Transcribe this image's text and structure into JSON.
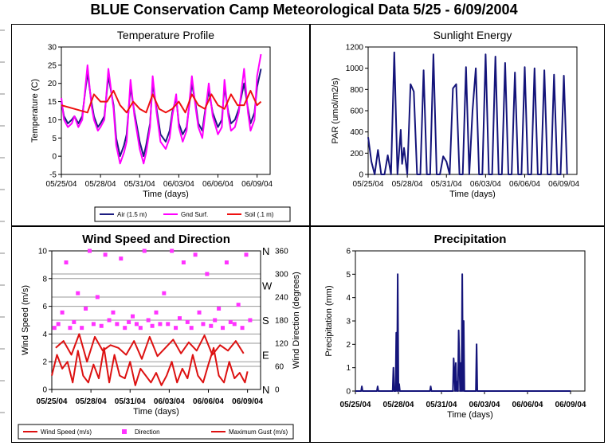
{
  "page": {
    "title": "BLUE Conservation Camp Meteorological Data    5/25 - 6/09/2004"
  },
  "colors": {
    "air": "#1c1c80",
    "ground": "#ff00ff",
    "soil": "#ee1111",
    "par": "#14147a",
    "precip": "#14147a",
    "wind": "#dd1111",
    "direction": "#ff33ff",
    "gust": "#dd1111"
  },
  "chart_data": [
    {
      "id": "temperature",
      "type": "line",
      "title": "Temperature Profile",
      "xlabel": "Time (days)",
      "ylabel": "Temperature (C)",
      "xticks": [
        "05/25/04",
        "05/28/04",
        "05/31/04",
        "06/03/04",
        "06/06/04",
        "06/09/04"
      ],
      "xlim": [
        0,
        16
      ],
      "ylim": [
        -5,
        30
      ],
      "yticks": [
        -5,
        0,
        5,
        10,
        15,
        20,
        25,
        30
      ],
      "legend_position": "bottom",
      "series": [
        {
          "name": "Air (1.5 m)",
          "color_key": "air",
          "x": [
            0,
            0.2,
            0.5,
            0.8,
            1,
            1.3,
            1.6,
            2,
            2.3,
            2.5,
            2.8,
            3,
            3.3,
            3.6,
            4,
            4.2,
            4.5,
            4.8,
            5,
            5.3,
            5.6,
            6,
            6.3,
            6.5,
            6.8,
            7,
            7.3,
            7.6,
            8,
            8.3,
            8.5,
            8.8,
            9,
            9.3,
            9.6,
            10,
            10.3,
            10.5,
            10.8,
            11,
            11.3,
            11.6,
            12,
            12.3,
            12.5,
            12.8,
            13,
            13.3,
            13.6,
            14,
            14.3,
            14.5,
            14.8,
            15,
            15.3
          ],
          "y": [
            15,
            11,
            9,
            10,
            11,
            9,
            11,
            23,
            15,
            11,
            8,
            9,
            11,
            22,
            14,
            5,
            0,
            3,
            6,
            19,
            12,
            4,
            0,
            3,
            9,
            20,
            13,
            6,
            4,
            7,
            12,
            16,
            9,
            6,
            8,
            20,
            14,
            9,
            7,
            12,
            18,
            12,
            8,
            10,
            19,
            12,
            9,
            10,
            13,
            20,
            13,
            9,
            12,
            19,
            24
          ]
        },
        {
          "name": "Gnd Surf.",
          "color_key": "ground",
          "x": [
            0,
            0.2,
            0.5,
            0.8,
            1,
            1.3,
            1.6,
            2,
            2.3,
            2.5,
            2.8,
            3,
            3.3,
            3.6,
            4,
            4.2,
            4.5,
            4.8,
            5,
            5.3,
            5.6,
            6,
            6.3,
            6.5,
            6.8,
            7,
            7.3,
            7.6,
            8,
            8.3,
            8.5,
            8.8,
            9,
            9.3,
            9.6,
            10,
            10.3,
            10.5,
            10.8,
            11,
            11.3,
            11.6,
            12,
            12.3,
            12.5,
            12.8,
            13,
            13.3,
            13.6,
            14,
            14.3,
            14.5,
            14.8,
            15,
            15.3
          ],
          "y": [
            16,
            10,
            8,
            9,
            11,
            8,
            10,
            25,
            14,
            10,
            7,
            8,
            10,
            24,
            13,
            3,
            -2,
            1,
            4,
            21,
            11,
            2,
            -2,
            1,
            8,
            22,
            12,
            4,
            2,
            5,
            11,
            17,
            8,
            4,
            7,
            22,
            13,
            8,
            5,
            11,
            20,
            11,
            6,
            8,
            21,
            11,
            7,
            8,
            12,
            24,
            12,
            7,
            10,
            22,
            28
          ]
        },
        {
          "name": "Soil (.1 m)",
          "color_key": "soil",
          "x": [
            0,
            1,
            2,
            2.5,
            3,
            3.5,
            4,
            4.5,
            5,
            5.5,
            6,
            6.5,
            7,
            7.5,
            8,
            8.5,
            9,
            9.5,
            10,
            10.5,
            11,
            11.5,
            12,
            12.5,
            13,
            13.5,
            14,
            14.5,
            15,
            15.3
          ],
          "y": [
            14,
            13,
            12,
            17,
            15,
            15,
            18,
            14,
            12,
            15,
            13,
            12,
            17,
            13,
            12,
            13,
            15,
            12,
            17,
            14,
            13,
            17,
            14,
            13,
            17,
            14,
            14,
            18,
            14,
            15
          ]
        }
      ]
    },
    {
      "id": "sunlight",
      "type": "line",
      "title": "Sunlight Energy",
      "xlabel": "Time (days)",
      "ylabel": "PAR (umol/m2/s)",
      "xticks": [
        "05/25/04",
        "05/28/04",
        "05/31/04",
        "06/03/04",
        "06/06/04",
        "06/09/04"
      ],
      "xlim": [
        0,
        16
      ],
      "ylim": [
        0,
        1200
      ],
      "yticks": [
        0,
        200,
        400,
        600,
        800,
        1000,
        1200
      ],
      "series": [
        {
          "name": "PAR",
          "color_key": "par",
          "x": [
            0,
            0.25,
            0.5,
            0.75,
            1,
            1.25,
            1.5,
            1.75,
            2,
            2.25,
            2.5,
            2.6,
            2.75,
            3,
            3.25,
            3.5,
            3.75,
            4,
            4.25,
            4.5,
            4.75,
            5,
            5.25,
            5.5,
            5.75,
            6,
            6.25,
            6.5,
            6.75,
            7,
            7.25,
            7.5,
            7.75,
            8,
            8.25,
            8.5,
            8.75,
            9,
            9.25,
            9.5,
            9.75,
            10,
            10.25,
            10.5,
            10.75,
            11,
            11.25,
            11.5,
            11.75,
            12,
            12.25,
            12.5,
            12.75,
            13,
            13.25,
            13.5,
            13.75,
            14,
            14.25,
            14.5,
            14.75,
            15,
            15.25
          ],
          "y": [
            350,
            120,
            0,
            230,
            0,
            0,
            180,
            0,
            1150,
            0,
            420,
            100,
            250,
            0,
            850,
            780,
            0,
            0,
            980,
            0,
            0,
            1130,
            0,
            0,
            170,
            120,
            0,
            810,
            850,
            0,
            0,
            1010,
            0,
            600,
            1000,
            0,
            0,
            1130,
            0,
            0,
            1110,
            0,
            0,
            1050,
            0,
            0,
            960,
            0,
            0,
            1010,
            0,
            0,
            1000,
            0,
            0,
            980,
            0,
            0,
            940,
            0,
            0,
            930,
            0
          ]
        }
      ]
    },
    {
      "id": "wind",
      "type": "scatter",
      "title": "Wind Speed and Direction",
      "xlabel": "Time (days)",
      "ylabel": "Wind Speed (m/s)",
      "y2label": "Wind Direction (degrees)",
      "xticks": [
        "05/25/04",
        "05/28/04",
        "05/31/04",
        "06/03/04",
        "06/06/04",
        "06/09/04"
      ],
      "xlim": [
        0,
        16
      ],
      "ylim": [
        0,
        10
      ],
      "yticks": [
        0,
        2,
        4,
        6,
        8,
        10
      ],
      "y2lim": [
        0,
        360
      ],
      "y2ticks": [
        0,
        60,
        120,
        180,
        240,
        300,
        360
      ],
      "compass": [
        "N",
        "E",
        "S",
        "W",
        "N"
      ],
      "legend_position": "bottom",
      "grid": true,
      "series": [
        {
          "name": "Wind Speed (m/s)",
          "color_key": "wind",
          "x": [
            0,
            0.4,
            0.8,
            1.2,
            1.6,
            2,
            2.4,
            2.8,
            3.2,
            3.6,
            4,
            4.4,
            4.8,
            5.2,
            5.6,
            6,
            6.4,
            6.8,
            7.2,
            7.6,
            8,
            8.4,
            8.8,
            9.2,
            9.6,
            10,
            10.4,
            10.8,
            11.2,
            11.6,
            12,
            12.4,
            12.8,
            13.2,
            13.6,
            14,
            14.4,
            14.8,
            15
          ],
          "y": [
            1,
            2.5,
            1.5,
            2,
            0.5,
            2.8,
            1,
            0.5,
            1.8,
            0.8,
            3,
            0.5,
            2.5,
            1,
            0.8,
            2,
            0.3,
            1.5,
            1,
            0.5,
            1.2,
            0.3,
            1,
            2,
            0.5,
            1.5,
            0.8,
            2.5,
            1,
            0.5,
            1.8,
            3,
            1,
            0.5,
            2,
            0.8,
            1.2,
            0.5,
            1.3
          ]
        },
        {
          "name": "Direction",
          "color_key": "direction",
          "x": [
            0.2,
            0.5,
            0.8,
            1.1,
            1.4,
            1.7,
            2,
            2.3,
            2.6,
            2.9,
            3.2,
            3.5,
            3.8,
            4.1,
            4.4,
            4.7,
            5,
            5.3,
            5.6,
            5.9,
            6.2,
            6.5,
            6.8,
            7.1,
            7.4,
            7.7,
            8,
            8.3,
            8.6,
            8.9,
            9.2,
            9.5,
            9.8,
            10.1,
            10.4,
            10.7,
            11,
            11.3,
            11.6,
            11.9,
            12.2,
            12.5,
            12.8,
            13.1,
            13.4,
            13.7,
            14,
            14.3,
            14.6,
            14.9,
            15.2
          ],
          "y": [
            160,
            170,
            200,
            330,
            160,
            175,
            250,
            160,
            210,
            360,
            170,
            240,
            165,
            350,
            180,
            200,
            170,
            340,
            160,
            175,
            190,
            170,
            160,
            360,
            180,
            165,
            200,
            170,
            250,
            170,
            360,
            160,
            185,
            330,
            175,
            160,
            350,
            200,
            170,
            300,
            165,
            180,
            210,
            160,
            330,
            175,
            170,
            220,
            160,
            350,
            180
          ]
        },
        {
          "name": "Maximum Gust (m/s)",
          "color_key": "gust",
          "x": [
            0.3,
            0.9,
            1.5,
            2.1,
            2.7,
            3.3,
            3.9,
            4.5,
            5.1,
            5.7,
            6.3,
            6.9,
            7.5,
            8.1,
            8.7,
            9.3,
            9.9,
            10.5,
            11.1,
            11.7,
            12.3,
            12.9,
            13.5,
            14.1,
            14.7
          ],
          "y": [
            3,
            3.5,
            2.5,
            4,
            2,
            3.8,
            2.8,
            3.2,
            3,
            2.5,
            3.5,
            2.2,
            3.8,
            2.4,
            3,
            3.6,
            2.6,
            3.4,
            2.8,
            3.9,
            2.5,
            3.2,
            2.8,
            3.5,
            2.6
          ]
        }
      ]
    },
    {
      "id": "precipitation",
      "type": "line",
      "title": "Precipitation",
      "xlabel": "Time (days)",
      "ylabel": "Precipitation (mm)",
      "xticks": [
        "05/25/04",
        "05/28/04",
        "05/31/04",
        "06/03/04",
        "06/06/04",
        "06/09/04"
      ],
      "xlim": [
        0,
        16
      ],
      "ylim": [
        0,
        6
      ],
      "yticks": [
        0,
        1,
        2,
        3,
        4,
        5,
        6
      ],
      "series": [
        {
          "name": "Precipitation",
          "color_key": "precip",
          "x": [
            0,
            0.4,
            0.45,
            0.5,
            1,
            1.5,
            1.55,
            1.6,
            2,
            2.6,
            2.65,
            2.7,
            2.8,
            2.85,
            2.9,
            2.95,
            3,
            3.05,
            3.1,
            3.2,
            4,
            5.2,
            5.25,
            5.3,
            6,
            6.8,
            6.85,
            6.9,
            6.95,
            7,
            7.05,
            7.1,
            7.15,
            7.2,
            7.3,
            7.35,
            7.4,
            7.45,
            7.5,
            7.55,
            7.6,
            7.7,
            8,
            8.4,
            8.45,
            8.5,
            9,
            10,
            11,
            12,
            13,
            14,
            15
          ],
          "y": [
            0,
            0,
            0.2,
            0,
            0,
            0,
            0.2,
            0,
            0,
            0,
            1,
            0,
            0,
            2.5,
            0,
            5,
            0,
            0.3,
            0,
            0,
            0,
            0,
            0.2,
            0,
            0,
            0,
            1.4,
            0.8,
            0,
            1.2,
            0,
            0.4,
            0,
            2.6,
            0,
            1.2,
            0,
            5,
            0,
            3,
            0,
            0,
            0,
            0,
            2,
            0,
            0,
            0,
            0,
            0,
            0,
            0,
            0
          ]
        }
      ]
    }
  ]
}
